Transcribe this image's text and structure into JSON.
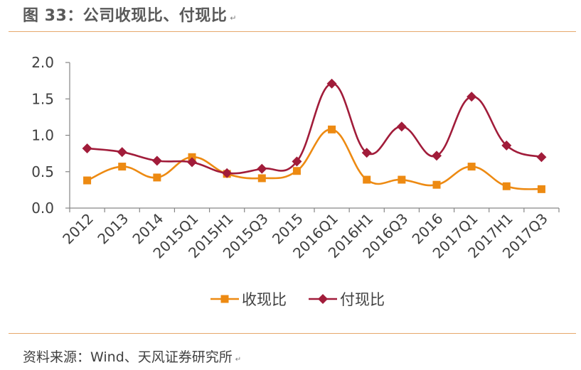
{
  "header": {
    "title": "图 33：公司收现比、付现比",
    "mark": "↵"
  },
  "footer": {
    "source": "资料来源：Wind、天风证券研究所",
    "mark": "↵"
  },
  "chart_data": {
    "type": "line",
    "title": "公司收现比、付现比",
    "categories": [
      "2012",
      "2013",
      "2014",
      "2015Q1",
      "2015H1",
      "2015Q3",
      "2015",
      "2016Q1",
      "2016H1",
      "2016Q3",
      "2016",
      "2017Q1",
      "2017H1",
      "2017Q3"
    ],
    "series": [
      {
        "name": "收现比",
        "color": "#ed8a12",
        "marker": "square",
        "values": [
          0.38,
          0.57,
          0.42,
          0.7,
          0.47,
          0.41,
          0.51,
          1.08,
          0.39,
          0.39,
          0.32,
          0.57,
          0.3,
          0.26
        ]
      },
      {
        "name": "付现比",
        "color": "#a11c3a",
        "marker": "diamond",
        "values": [
          0.82,
          0.77,
          0.65,
          0.63,
          0.48,
          0.54,
          0.64,
          1.71,
          0.76,
          1.12,
          0.72,
          1.53,
          0.86,
          0.7
        ]
      }
    ],
    "yticks": [
      "0.0",
      "0.5",
      "1.0",
      "1.5",
      "2.0"
    ],
    "ylim": [
      0,
      2.0
    ],
    "xlabel": "",
    "ylabel": "",
    "grid": false,
    "legend": "bottom-center"
  }
}
